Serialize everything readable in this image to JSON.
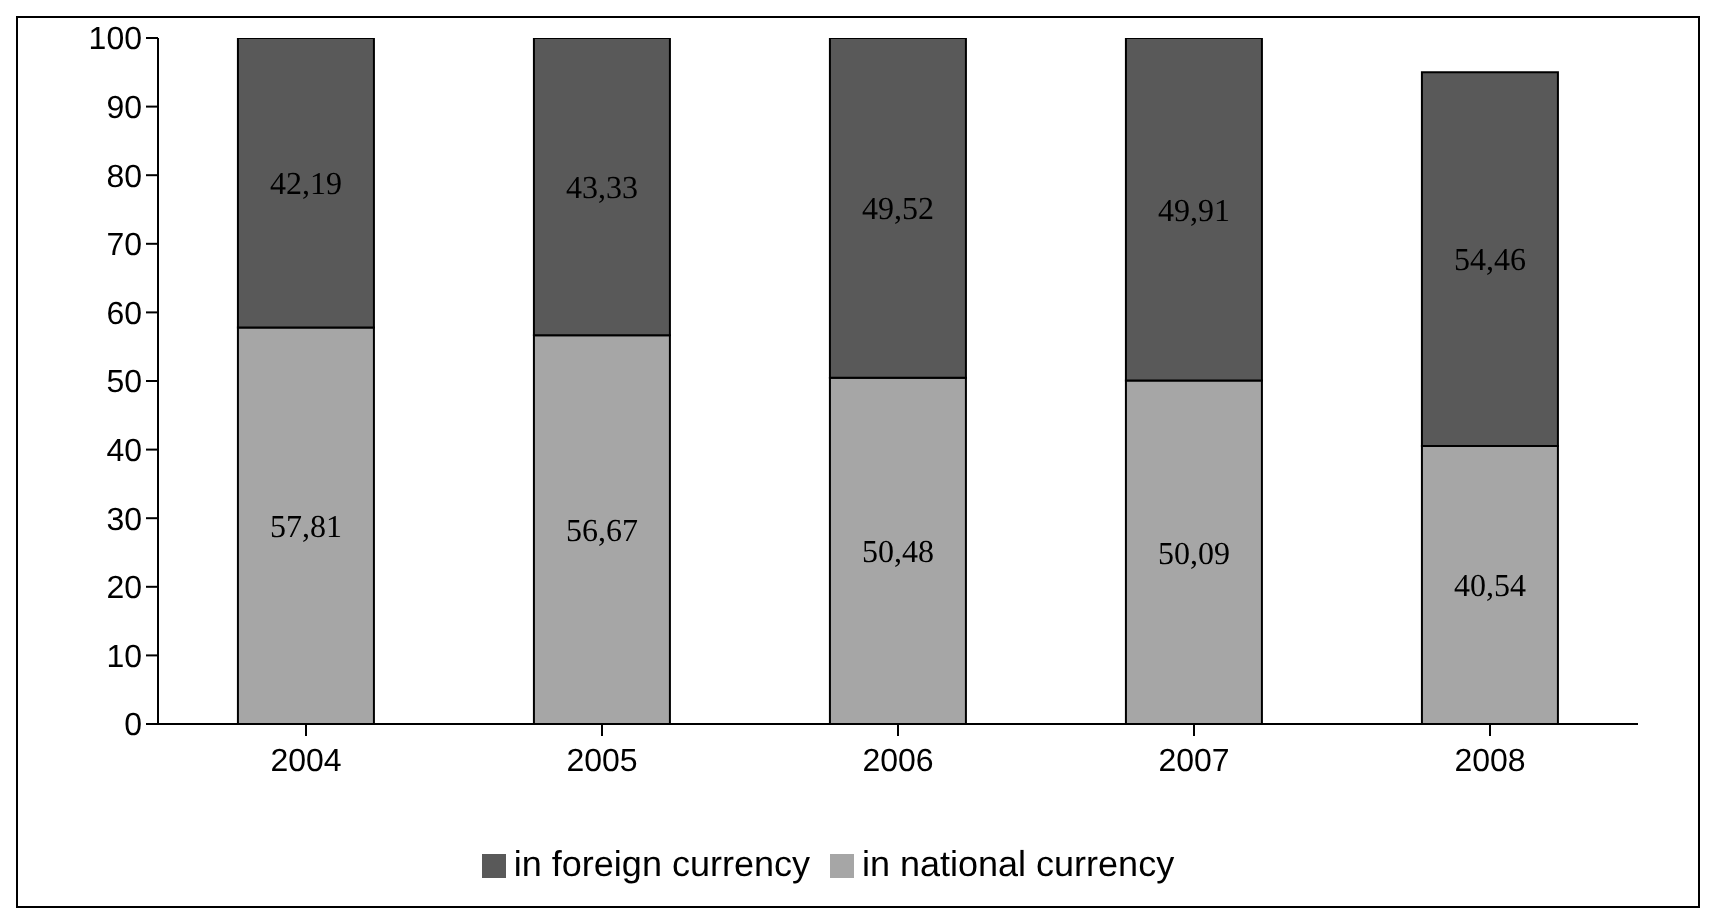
{
  "chart_data": {
    "type": "bar",
    "stacked": true,
    "categories": [
      "2004",
      "2005",
      "2006",
      "2007",
      "2008"
    ],
    "series": [
      {
        "name": "in national currency",
        "color": "#a6a6a6",
        "values": [
          57.81,
          56.67,
          50.48,
          50.09,
          40.54
        ],
        "value_labels": [
          "57,81",
          "56,67",
          "50,48",
          "50,09",
          "40,54"
        ]
      },
      {
        "name": "in foreign currency",
        "color": "#595959",
        "values": [
          42.19,
          43.33,
          49.52,
          49.91,
          54.46
        ],
        "value_labels": [
          "42,19",
          "43,33",
          "49,52",
          "49,91",
          "54,46"
        ]
      }
    ],
    "ylim": [
      0,
      100
    ],
    "yticks": [
      0,
      10,
      20,
      30,
      40,
      50,
      60,
      70,
      80,
      90,
      100
    ],
    "grid": false,
    "legend": "bottom"
  }
}
